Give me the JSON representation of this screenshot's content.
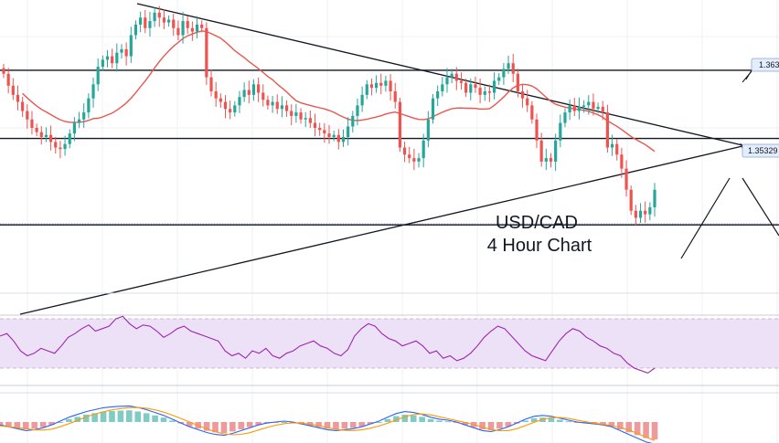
{
  "chart_data": {
    "type": "candlestick",
    "title_line1": "USD/CAD",
    "title_line2": "4 Hour Chart",
    "price_labels": [
      "1.363",
      "1.35329"
    ],
    "horizontal_levels": [
      1.363,
      1.3533,
      1.341
    ],
    "ylim": [
      1.334,
      1.373
    ],
    "colors": {
      "bull": "#26a69a",
      "bear": "#ef5350",
      "ma": "#e8574f",
      "rsi_line": "#9c27b0",
      "rsi_band": "#e9dcf5",
      "macd_line": "#2962ff",
      "signal_line": "#ff9800",
      "trendline": "#131722",
      "level": "#131722",
      "grid": "#eef0f3",
      "label_bg": "#e3eefc",
      "label_border": "#8aa5d6"
    },
    "candle_closes": [
      1.3625,
      1.3608,
      1.3595,
      1.3585,
      1.3572,
      1.356,
      1.3548,
      1.3542,
      1.3535,
      1.3538,
      1.3528,
      1.352,
      1.3518,
      1.3525,
      1.354,
      1.3555,
      1.356,
      1.357,
      1.359,
      1.361,
      1.3635,
      1.3645,
      1.365,
      1.364,
      1.3655,
      1.366,
      1.365,
      1.368,
      1.3695,
      1.3705,
      1.369,
      1.37,
      1.3712,
      1.3705,
      1.3698,
      1.3702,
      1.369,
      1.368,
      1.37,
      1.369,
      1.3685,
      1.3695,
      1.369,
      1.362,
      1.36,
      1.359,
      1.3585,
      1.3575,
      1.357,
      1.358,
      1.3592,
      1.3602,
      1.3595,
      1.361,
      1.3598,
      1.3588,
      1.358,
      1.3585,
      1.3575,
      1.358,
      1.3572,
      1.3565,
      1.357,
      1.356,
      1.3562,
      1.3555,
      1.3548,
      1.3545,
      1.354,
      1.3535,
      1.3538,
      1.3528,
      1.3535,
      1.355,
      1.3565,
      1.358,
      1.3595,
      1.361,
      1.3605,
      1.3612,
      1.3608,
      1.3615,
      1.36,
      1.3585,
      1.352,
      1.351,
      1.3505,
      1.35,
      1.3505,
      1.353,
      1.356,
      1.359,
      1.36,
      1.361,
      1.362,
      1.3625,
      1.3615,
      1.3612,
      1.3598,
      1.361,
      1.3605,
      1.3595,
      1.36,
      1.3598,
      1.3615,
      1.362,
      1.3632,
      1.364,
      1.3625,
      1.36,
      1.359,
      1.358,
      1.356,
      1.353,
      1.35,
      1.3505,
      1.35,
      1.353,
      1.3555,
      1.357,
      1.358,
      1.3572,
      1.3578,
      1.358,
      1.3585,
      1.3575,
      1.3578,
      1.357,
      1.352,
      1.3525,
      1.351,
      1.349,
      1.346,
      1.343,
      1.342,
      1.343,
      1.3425,
      1.3435,
      1.346
    ],
    "rsi_levels": [
      70,
      30
    ],
    "rsi_values": [
      56,
      58,
      52,
      44,
      40,
      42,
      46,
      44,
      42,
      48,
      55,
      58,
      62,
      65,
      60,
      62,
      64,
      70,
      72,
      66,
      62,
      65,
      64,
      60,
      55,
      58,
      62,
      64,
      60,
      58,
      56,
      54,
      52,
      44,
      40,
      42,
      38,
      44,
      42,
      46,
      40,
      38,
      42,
      44,
      48,
      50,
      52,
      48,
      46,
      42,
      40,
      45,
      56,
      62,
      66,
      64,
      58,
      54,
      52,
      48,
      50,
      52,
      48,
      42,
      44,
      38,
      40,
      36,
      38,
      42,
      48,
      55,
      60,
      64,
      62,
      56,
      50,
      44,
      40,
      38,
      36,
      44,
      52,
      58,
      62,
      60,
      55,
      52,
      48,
      46,
      42,
      40,
      34,
      30,
      28,
      26,
      30
    ],
    "macd_values": [
      -0.2,
      -0.3,
      -0.4,
      -0.5,
      -0.45,
      -0.35,
      -0.2,
      0.0,
      0.2,
      0.35,
      0.5,
      0.6,
      0.7,
      0.75,
      0.78,
      0.8,
      0.72,
      0.6,
      0.45,
      0.3,
      0.1,
      -0.1,
      -0.3,
      -0.45,
      -0.6,
      -0.7,
      -0.75,
      -0.65,
      -0.5,
      -0.35,
      -0.2,
      -0.1,
      -0.05,
      0.0,
      -0.05,
      -0.15,
      -0.25,
      -0.35,
      -0.45,
      -0.5,
      -0.45,
      -0.4,
      -0.3,
      -0.15,
      0.0,
      0.2,
      0.4,
      0.5,
      0.45,
      0.35,
      0.2,
      0.1,
      0.05,
      -0.05,
      -0.2,
      -0.35,
      -0.5,
      -0.55,
      -0.45,
      -0.3,
      -0.1,
      0.1,
      0.25,
      0.3,
      0.25,
      0.15,
      0.05,
      -0.05,
      -0.1,
      -0.15,
      -0.2,
      -0.3,
      -0.5,
      -0.7,
      -0.9,
      -1.1,
      -1.2
    ]
  }
}
